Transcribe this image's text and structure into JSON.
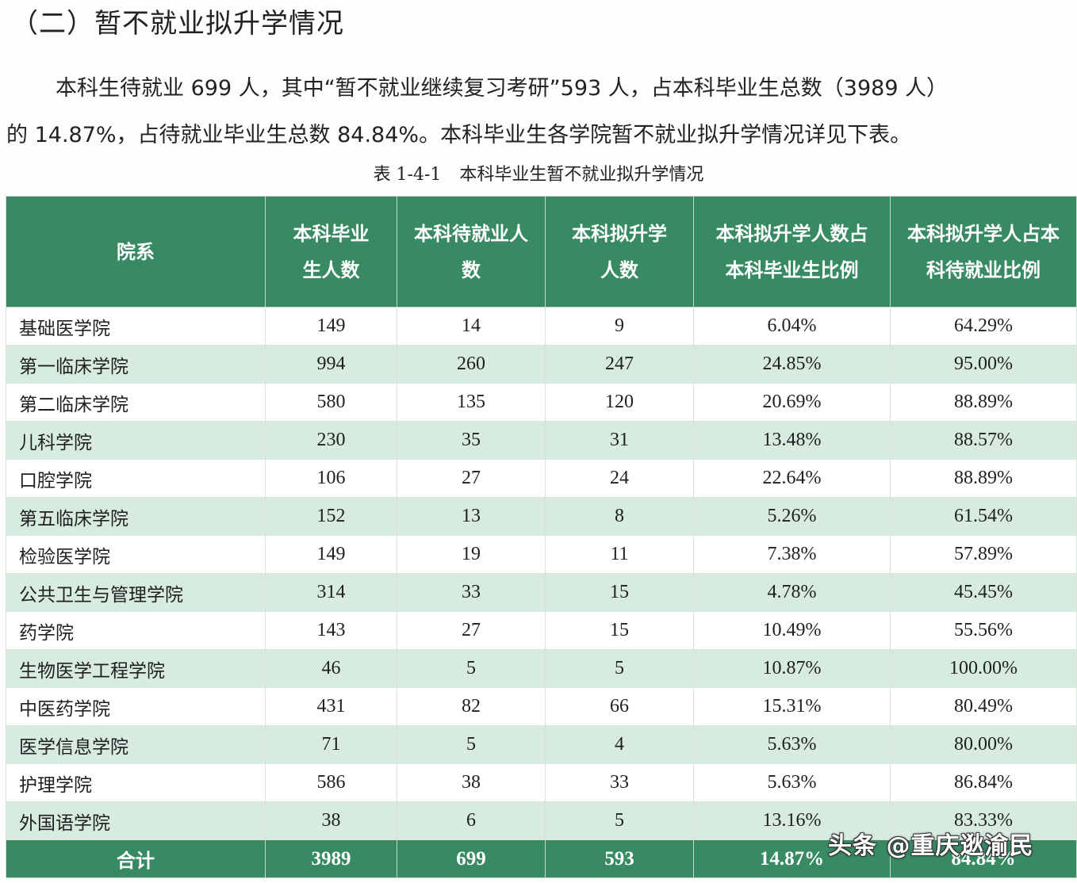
{
  "section_title": "（二）暂不就业拟升学情况",
  "paragraph": {
    "line1": "本科生待就业 699 人，其中“暂不就业继续复习考研”593 人，占本科毕业生总数（3989 人）",
    "line2": "的 14.87%，占待就业毕业生总数 84.84%。本科毕业生各学院暂不就业拟升学情况详见下表。"
  },
  "caption": {
    "number": "表 1-4-1",
    "title": "本科毕业生暂不就业拟升学情况"
  },
  "table": {
    "headers": [
      "院系",
      "本科毕业生人数",
      "本科待就业人数",
      "本科拟升学人数",
      "本科拟升学人数占本科毕业生比例",
      "本科拟升学人占本科待就业比例"
    ],
    "rows": [
      {
        "dept": "基础医学院",
        "grads": "149",
        "pending": "14",
        "further": "9",
        "pct_grads": "6.04%",
        "pct_pending": "64.29%"
      },
      {
        "dept": "第一临床学院",
        "grads": "994",
        "pending": "260",
        "further": "247",
        "pct_grads": "24.85%",
        "pct_pending": "95.00%"
      },
      {
        "dept": "第二临床学院",
        "grads": "580",
        "pending": "135",
        "further": "120",
        "pct_grads": "20.69%",
        "pct_pending": "88.89%"
      },
      {
        "dept": "儿科学院",
        "grads": "230",
        "pending": "35",
        "further": "31",
        "pct_grads": "13.48%",
        "pct_pending": "88.57%"
      },
      {
        "dept": "口腔学院",
        "grads": "106",
        "pending": "27",
        "further": "24",
        "pct_grads": "22.64%",
        "pct_pending": "88.89%"
      },
      {
        "dept": "第五临床学院",
        "grads": "152",
        "pending": "13",
        "further": "8",
        "pct_grads": "5.26%",
        "pct_pending": "61.54%"
      },
      {
        "dept": "检验医学院",
        "grads": "149",
        "pending": "19",
        "further": "11",
        "pct_grads": "7.38%",
        "pct_pending": "57.89%"
      },
      {
        "dept": "公共卫生与管理学院",
        "grads": "314",
        "pending": "33",
        "further": "15",
        "pct_grads": "4.78%",
        "pct_pending": "45.45%"
      },
      {
        "dept": "药学院",
        "grads": "143",
        "pending": "27",
        "further": "15",
        "pct_grads": "10.49%",
        "pct_pending": "55.56%"
      },
      {
        "dept": "生物医学工程学院",
        "grads": "46",
        "pending": "5",
        "further": "5",
        "pct_grads": "10.87%",
        "pct_pending": "100.00%"
      },
      {
        "dept": "中医药学院",
        "grads": "431",
        "pending": "82",
        "further": "66",
        "pct_grads": "15.31%",
        "pct_pending": "80.49%"
      },
      {
        "dept": "医学信息学院",
        "grads": "71",
        "pending": "5",
        "further": "4",
        "pct_grads": "5.63%",
        "pct_pending": "80.00%"
      },
      {
        "dept": "护理学院",
        "grads": "586",
        "pending": "38",
        "further": "33",
        "pct_grads": "5.63%",
        "pct_pending": "86.84%"
      },
      {
        "dept": "外国语学院",
        "grads": "38",
        "pending": "6",
        "further": "5",
        "pct_grads": "13.16%",
        "pct_pending": "83.33%"
      }
    ],
    "total": {
      "dept": "合计",
      "grads": "3989",
      "pending": "699",
      "further": "593",
      "pct_grads": "14.87%",
      "pct_pending": "84.84%"
    }
  },
  "watermark": "头条 @重庆逖渝民",
  "colors": {
    "header_bg": "#388a63",
    "row_alt_bg": "#d7ebe0",
    "row_bg": "#ffffff"
  }
}
